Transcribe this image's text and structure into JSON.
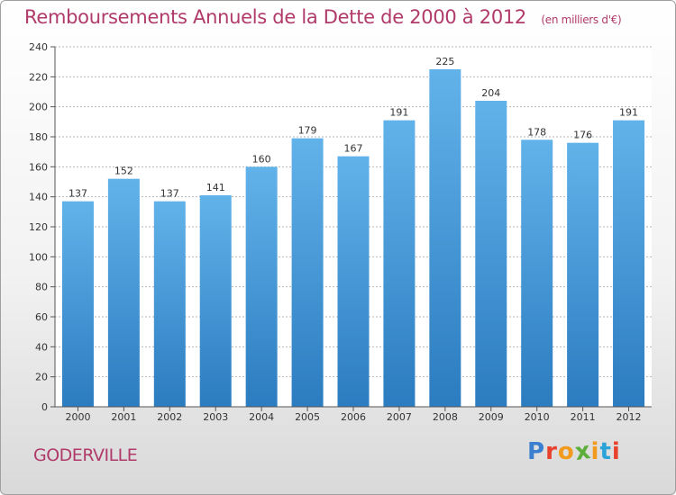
{
  "title": "Remboursements Annuels de la Dette de 2000 à 2012",
  "unit": "(en milliers d'€)",
  "location": "GODERVILLE",
  "logo_text": "Proxiti",
  "colors": {
    "title": "#b03a6a",
    "bar_light": "#5faee6",
    "bar_dark": "#2a7cbf",
    "grid": "#b0b0b0"
  },
  "chart_data": {
    "type": "bar",
    "categories": [
      "2000",
      "2001",
      "2002",
      "2003",
      "2004",
      "2005",
      "2006",
      "2007",
      "2008",
      "2009",
      "2010",
      "2011",
      "2012"
    ],
    "values": [
      137,
      152,
      137,
      141,
      160,
      179,
      167,
      191,
      225,
      204,
      178,
      176,
      191
    ],
    "ylim": [
      0,
      240
    ],
    "yticks": [
      0,
      20,
      40,
      60,
      80,
      100,
      120,
      140,
      160,
      180,
      200,
      220,
      240
    ],
    "grid": true,
    "title": "Remboursements Annuels de la Dette de 2000 à 2012",
    "xlabel": "",
    "ylabel": ""
  }
}
